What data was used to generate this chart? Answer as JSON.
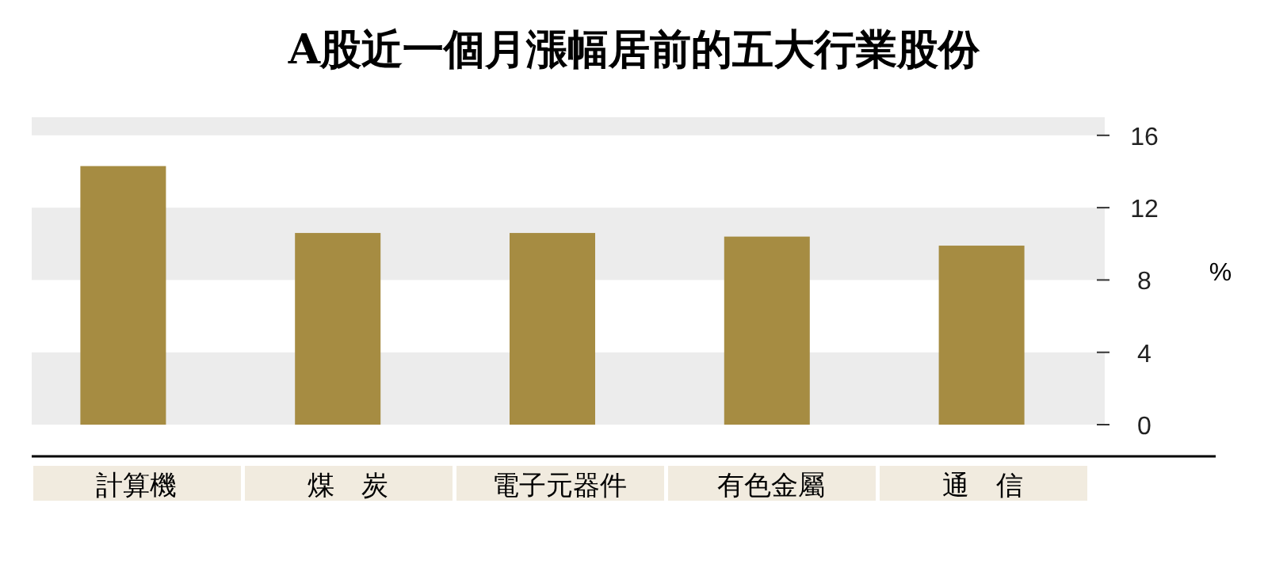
{
  "chart_data": {
    "type": "bar",
    "title": "A股近一個月漲幅居前的五大行業股份",
    "categories": [
      "計算機",
      "煤　炭",
      "電子元器件",
      "有色金屬",
      "通　信"
    ],
    "values": [
      14.3,
      10.6,
      10.6,
      10.4,
      9.9
    ],
    "color": "#a68c42",
    "ylabel": "%",
    "ylim": [
      0,
      17
    ],
    "yticks": [
      0,
      4,
      8,
      12,
      16
    ],
    "bands": [
      {
        "axis": "y",
        "from": 0,
        "to": 4,
        "color": "#ececec"
      },
      {
        "axis": "y",
        "from": 8,
        "to": 12,
        "color": "#ececec"
      },
      {
        "axis": "y",
        "from": 16,
        "to": 17,
        "color": "#ececec"
      }
    ]
  }
}
